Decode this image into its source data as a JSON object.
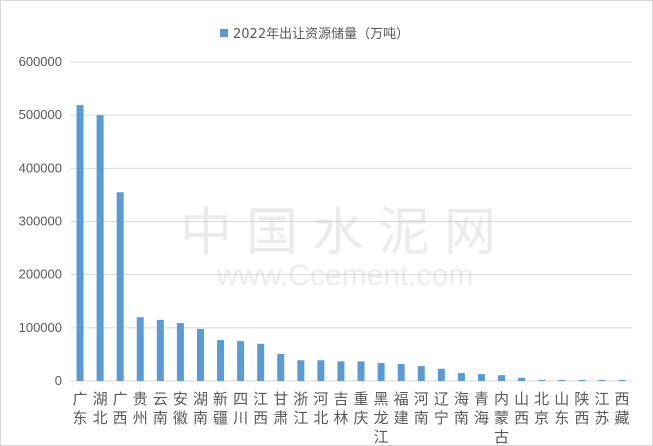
{
  "chart_data": {
    "type": "bar",
    "title": "",
    "legend": {
      "entries": [
        "2022年出让资源储量（万吨）"
      ],
      "placement": "top"
    },
    "series": [
      {
        "name": "2022年出让资源储量（万吨）",
        "color": "#5b9bd5",
        "values": [
          519000,
          500000,
          355000,
          120000,
          115000,
          109000,
          98000,
          77000,
          75000,
          70000,
          51000,
          39000,
          39000,
          37000,
          37000,
          34000,
          32000,
          28000,
          23000,
          15000,
          13000,
          11000,
          6000,
          2000,
          2000,
          2000,
          2000,
          2000
        ]
      }
    ],
    "categories": [
      "广东",
      "湖北",
      "广西",
      "贵州",
      "云南",
      "安徽",
      "湖南",
      "新疆",
      "四川",
      "江西",
      "甘肃",
      "浙江",
      "河北",
      "吉林",
      "重庆",
      "黑龙江",
      "福建",
      "河南",
      "辽宁",
      "海南",
      "青海",
      "内蒙古",
      "山西",
      "北京",
      "山东",
      "陕西",
      "江苏",
      "西藏"
    ],
    "ylim": [
      0,
      600000
    ],
    "yticks": [
      "0",
      "100000",
      "200000",
      "300000",
      "400000",
      "500000",
      "600000"
    ],
    "grid": true,
    "xlabel": "",
    "ylabel": ""
  },
  "watermark": {
    "cn": "中国水泥网",
    "url": "www.Ccement.com"
  }
}
